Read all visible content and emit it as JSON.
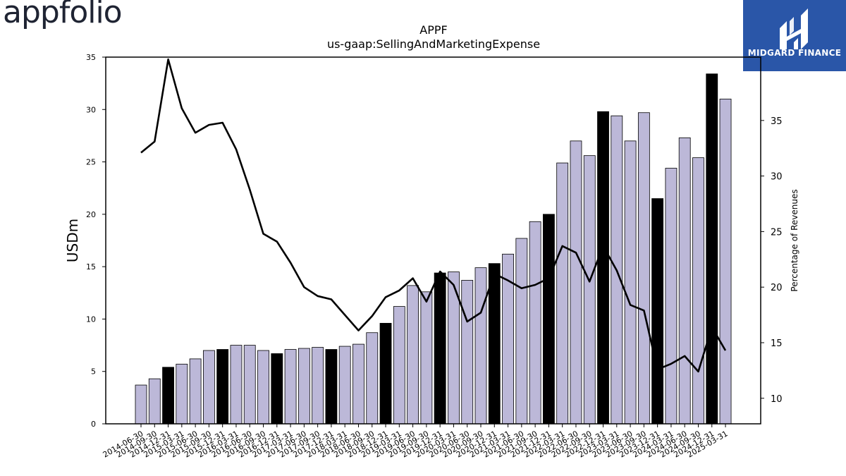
{
  "logo": {
    "text": "appfolio"
  },
  "brand": {
    "name": "MIDGARD FINANCE",
    "bg_color": "#2a56a8",
    "icon": "midgard-logo-icon"
  },
  "chart_data": {
    "type": "bar",
    "title": "APPF",
    "subtitle": "us-gaap:SellingAndMarketingExpense",
    "ylabel": "USDm",
    "y2label": "Percentage of Revenues",
    "ylim": [
      0,
      35
    ],
    "y2lim": [
      7.7,
      40.7
    ],
    "yticks": [
      0,
      5,
      10,
      15,
      20,
      25,
      30,
      35
    ],
    "y2ticks": [
      10,
      15,
      20,
      25,
      30,
      35
    ],
    "bar_color": "#bcb8d8",
    "highlight_color": "#000000",
    "line_color": "#000000",
    "categories": [
      "2014-06-30",
      "2014-09-30",
      "2014-12-31",
      "2015-03-31",
      "2015-06-30",
      "2015-09-30",
      "2015-12-31",
      "2016-03-31",
      "2016-06-30",
      "2016-09-30",
      "2016-12-31",
      "2017-03-31",
      "2017-06-30",
      "2017-09-30",
      "2017-12-31",
      "2018-03-31",
      "2018-06-30",
      "2018-09-30",
      "2018-12-31",
      "2019-03-31",
      "2019-06-30",
      "2019-09-30",
      "2019-12-31",
      "2020-03-31",
      "2020-06-30",
      "2020-09-30",
      "2020-12-31",
      "2021-03-31",
      "2021-06-30",
      "2021-09-30",
      "2021-12-31",
      "2022-03-31",
      "2022-06-30",
      "2022-09-30",
      "2022-12-31",
      "2023-03-31",
      "2023-06-30",
      "2023-09-30",
      "2023-12-31",
      "2024-03-31",
      "2024-06-30",
      "2024-09-30",
      "2024-12-31",
      "2025-03-31"
    ],
    "series": [
      {
        "type": "bar",
        "values": [
          3.7,
          4.3,
          5.4,
          5.7,
          6.2,
          7.0,
          7.1,
          7.5,
          7.5,
          7.0,
          6.7,
          7.1,
          7.2,
          7.3,
          7.1,
          7.4,
          7.6,
          8.7,
          9.6,
          11.2,
          13.2,
          12.6,
          14.4,
          14.5,
          13.7,
          14.9,
          15.3,
          16.2,
          17.7,
          19.3,
          20.0,
          24.9,
          27.0,
          25.6,
          29.8,
          29.4,
          27.0,
          29.7,
          21.5,
          24.4,
          27.3,
          25.4,
          33.4,
          31.0
        ],
        "highlight": [
          false,
          false,
          true,
          false,
          false,
          false,
          true,
          false,
          false,
          false,
          true,
          false,
          false,
          false,
          true,
          false,
          false,
          false,
          true,
          false,
          false,
          false,
          true,
          false,
          false,
          false,
          true,
          false,
          false,
          false,
          true,
          false,
          false,
          false,
          true,
          false,
          false,
          false,
          true,
          false,
          false,
          false,
          true,
          false
        ]
      },
      {
        "type": "line",
        "axis": "right",
        "values": [
          32.1,
          33.1,
          40.5,
          36.1,
          33.9,
          34.6,
          34.8,
          32.4,
          28.8,
          24.8,
          24.1,
          22.2,
          20.0,
          19.2,
          18.9,
          17.5,
          16.1,
          17.4,
          19.1,
          19.7,
          20.8,
          18.7,
          21.4,
          20.2,
          16.9,
          17.7,
          21.2,
          20.6,
          19.9,
          20.2,
          20.8,
          23.7,
          23.1,
          20.5,
          23.7,
          21.5,
          18.4,
          17.9,
          12.6,
          13.1,
          13.8,
          12.4,
          16.4,
          14.3
        ]
      }
    ]
  }
}
